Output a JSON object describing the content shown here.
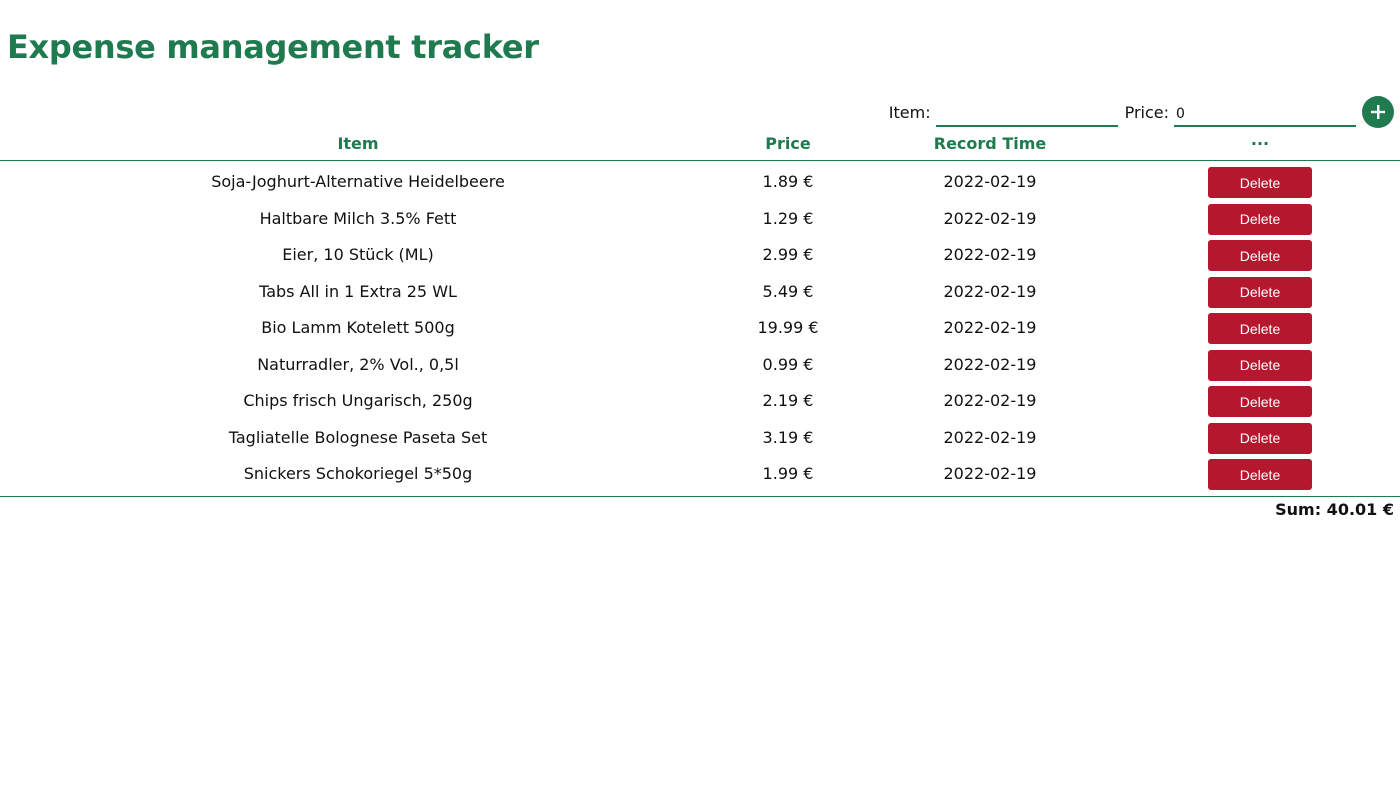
{
  "app": {
    "title": "Expense management tracker"
  },
  "form": {
    "item_label": "Item:",
    "item_value": "",
    "price_label": "Price:",
    "price_value": "0",
    "add_icon": "plus-icon"
  },
  "table": {
    "headers": {
      "item": "Item",
      "price": "Price",
      "record_time": "Record Time",
      "actions": "···"
    },
    "rows": [
      {
        "item": "Soja-Joghurt-Alternative Heidelbeere",
        "price": "1.89 €",
        "record_time": "2022-02-19",
        "action": "Delete"
      },
      {
        "item": "Haltbare Milch 3.5% Fett",
        "price": "1.29 €",
        "record_time": "2022-02-19",
        "action": "Delete"
      },
      {
        "item": "Eier, 10 Stück (ML)",
        "price": "2.99 €",
        "record_time": "2022-02-19",
        "action": "Delete"
      },
      {
        "item": "Tabs All in 1 Extra 25 WL",
        "price": "5.49 €",
        "record_time": "2022-02-19",
        "action": "Delete"
      },
      {
        "item": "Bio Lamm Kotelett 500g",
        "price": "19.99 €",
        "record_time": "2022-02-19",
        "action": "Delete"
      },
      {
        "item": "Naturradler, 2% Vol., 0,5l",
        "price": "0.99 €",
        "record_time": "2022-02-19",
        "action": "Delete"
      },
      {
        "item": "Chips frisch Ungarisch, 250g",
        "price": "2.19 €",
        "record_time": "2022-02-19",
        "action": "Delete"
      },
      {
        "item": "Tagliatelle Bolognese Paseta Set",
        "price": "3.19 €",
        "record_time": "2022-02-19",
        "action": "Delete"
      },
      {
        "item": "Snickers Schokoriegel 5*50g",
        "price": "1.99 €",
        "record_time": "2022-02-19",
        "action": "Delete"
      }
    ]
  },
  "summary": {
    "sum_label": "Sum: 40.01 €"
  },
  "colors": {
    "accent": "#1f7a4f",
    "delete": "#b5172f",
    "text": "#111111",
    "background": "#ffffff"
  }
}
